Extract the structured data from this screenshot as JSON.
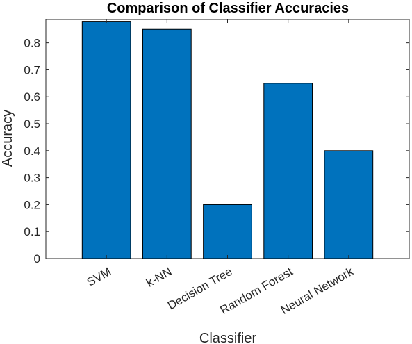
{
  "chart_data": {
    "type": "bar",
    "title": "Comparison of Classifier Accuracies",
    "xlabel": "Classifier",
    "ylabel": "Accuracy",
    "categories": [
      "SVM",
      "k-NN",
      "Decision Tree",
      "Random Forest",
      "Neural Network"
    ],
    "values": [
      0.88,
      0.85,
      0.2,
      0.65,
      0.4
    ],
    "ylim": [
      0,
      0.8867
    ],
    "yticks": [
      0,
      0.1,
      0.2,
      0.3,
      0.4,
      0.5,
      0.6,
      0.7,
      0.8
    ],
    "ytick_labels": [
      "0",
      "0.1",
      "0.2",
      "0.3",
      "0.4",
      "0.5",
      "0.6",
      "0.7",
      "0.8"
    ],
    "xlim": [
      0,
      6
    ],
    "grid": false,
    "legend": "none",
    "bar_color": "#0072BD",
    "edge_color": "#000000"
  }
}
